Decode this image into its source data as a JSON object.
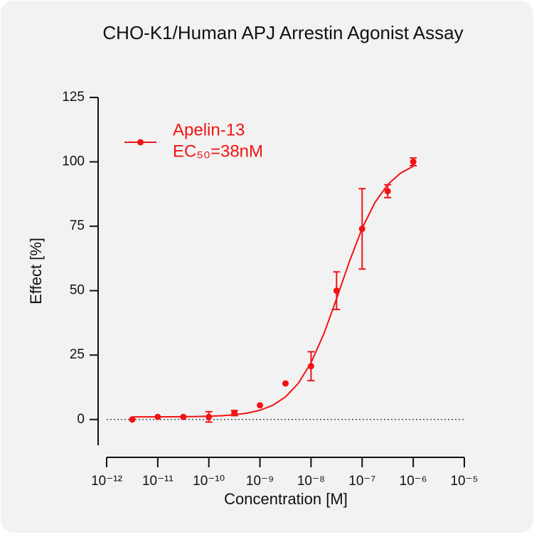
{
  "chart_data": {
    "type": "scatter",
    "title": "CHO-K1/Human APJ Arrestin Agonist Assay",
    "x_label": "Concentration [M]",
    "y_label": "Effect  [%]",
    "x_scale": "log",
    "xlim": [
      1e-12,
      1e-05
    ],
    "xticks": [
      {
        "value": 1e-12,
        "label": "10⁻¹²"
      },
      {
        "value": 1e-11,
        "label": "10⁻¹¹"
      },
      {
        "value": 1e-10,
        "label": "10⁻¹⁰"
      },
      {
        "value": 1e-09,
        "label": "10⁻⁹"
      },
      {
        "value": 1e-08,
        "label": "10⁻⁸"
      },
      {
        "value": 1e-07,
        "label": "10⁻⁷"
      },
      {
        "value": 1e-06,
        "label": "10⁻⁶"
      },
      {
        "value": 1e-05,
        "label": "10⁻⁵"
      }
    ],
    "ylim": [
      -10,
      125
    ],
    "yticks": [
      0,
      25,
      50,
      75,
      100,
      125
    ],
    "zero_line": true,
    "legend": "upper left",
    "series": [
      {
        "name": "Apelin-13",
        "color": "#f01414",
        "x": [
          3.162e-12,
          1e-11,
          3.162e-11,
          1e-10,
          3.162e-10,
          1e-09,
          3.162e-09,
          1e-08,
          3.162e-08,
          1e-07,
          3.162e-07,
          1e-06
        ],
        "values": [
          0,
          1,
          1,
          1,
          2.5,
          5.5,
          14,
          20.7,
          50,
          74,
          88.6,
          100
        ],
        "errors": [
          null,
          null,
          null,
          2,
          1,
          null,
          null,
          5.6,
          7.3,
          15.6,
          2.5,
          1.5
        ],
        "fit": {
          "x": [
            3.162e-12,
            5.623e-12,
            1e-11,
            1.778e-11,
            3.162e-11,
            5.623e-11,
            1e-10,
            1.778e-10,
            3.162e-10,
            5.623e-10,
            1e-09,
            1.778e-09,
            3.162e-09,
            5.623e-09,
            1e-08,
            1.778e-08,
            3.162e-08,
            5.623e-08,
            1e-07,
            1.778e-07,
            3.162e-07,
            5.623e-07,
            1e-06
          ],
          "values": [
            1.01,
            1.02,
            1.03,
            1.05,
            1.08,
            1.15,
            1.27,
            1.47,
            1.83,
            2.47,
            3.59,
            5.51,
            8.76,
            14.01,
            22.03,
            33.19,
            46.87,
            61.26,
            74.19,
            84.21,
            91.16,
            95.6,
            98.3
          ]
        }
      }
    ],
    "annotation": "EC₅₀=38nM"
  }
}
